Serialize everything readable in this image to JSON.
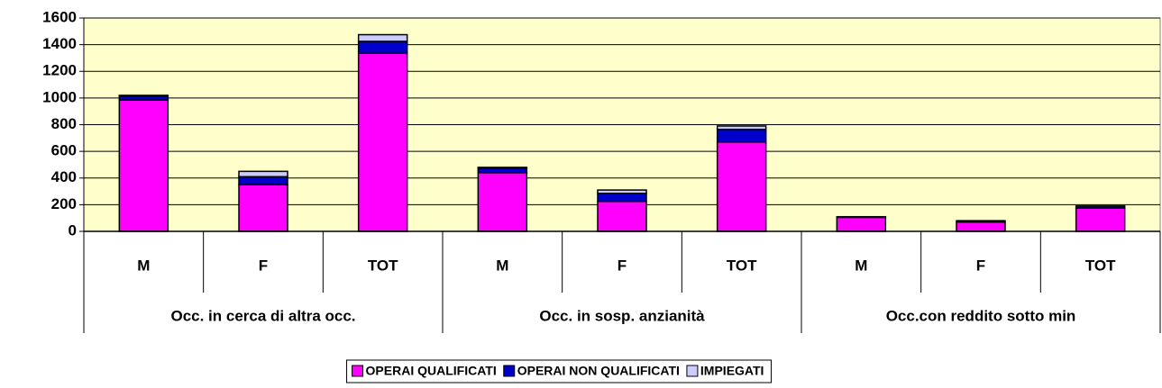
{
  "chart_data": {
    "type": "stacked_bar",
    "categories": [
      "M",
      "F",
      "TOT",
      "M",
      "F",
      "TOT",
      "M",
      "F",
      "TOT"
    ],
    "groups": [
      "Occ. in cerca di altra occ.",
      "Occ. in sosp. anzianità",
      "Occ.con reddito sotto min"
    ],
    "series": [
      {
        "name": "OPERAI QUALIFICATI",
        "color": "#ff00ff",
        "values": [
          985,
          350,
          1335,
          440,
          225,
          670,
          105,
          70,
          175
        ]
      },
      {
        "name": "OPERAI NON QUALIFICATI",
        "color": "#0000cc",
        "values": [
          30,
          60,
          90,
          35,
          60,
          95,
          5,
          10,
          15
        ]
      },
      {
        "name": "IMPIEGATI",
        "color": "#ccccff",
        "values": [
          5,
          40,
          50,
          5,
          25,
          25,
          0,
          0,
          0
        ]
      }
    ],
    "ylim": [
      0,
      1600
    ],
    "yticks": [
      0,
      200,
      400,
      600,
      800,
      1000,
      1200,
      1400,
      1600
    ],
    "grid": true,
    "legend": "bottom",
    "plot_background": "#ffffcc"
  }
}
